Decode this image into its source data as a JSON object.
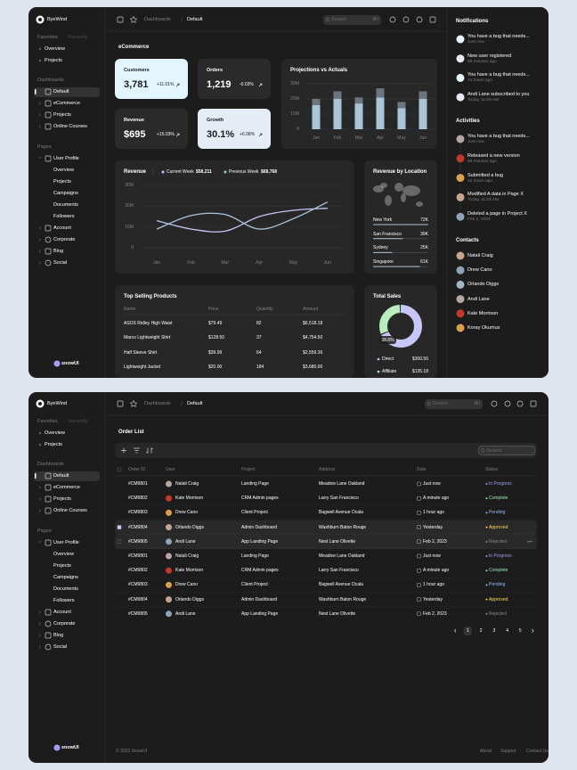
{
  "sidebar": {
    "brand": "ByeWind",
    "tabs": [
      "Favorites",
      "Recently"
    ],
    "favorites": [
      "Overview",
      "Projects"
    ],
    "dashboards_title": "Dashboards",
    "dashboards": [
      "Default",
      "eCommerce",
      "Projects",
      "Online Courses"
    ],
    "pages_title": "Pages",
    "user_profile": "User Profile",
    "user_profile_items": [
      "Overview",
      "Projects",
      "Campaigns",
      "Documents",
      "Followers"
    ],
    "pages": [
      "Account",
      "Corporate",
      "Blog",
      "Social"
    ],
    "logo": "snowUI"
  },
  "header": {
    "breadcrumb": [
      "Dashboards",
      "Default"
    ],
    "search": "Search",
    "shortcut": "⌘/"
  },
  "dashboard": {
    "section_title": "eCommerce",
    "kpis": [
      {
        "label": "Customers",
        "value": "3,781",
        "change": "+11.01%",
        "color": "#e3f5ff"
      },
      {
        "label": "Orders",
        "value": "1,219",
        "change": "-0.03%",
        "color": "#2a2a2a"
      },
      {
        "label": "Revenue",
        "value": "$695",
        "change": "+15.03%",
        "color": "#2a2a2a"
      },
      {
        "label": "Growth",
        "value": "30.1%",
        "change": "+6.08%",
        "color": "#e5ecf6"
      }
    ],
    "projections": {
      "type": "bar",
      "title": "Projections vs Actuals",
      "categories": [
        "Jan",
        "Feb",
        "Mar",
        "Apr",
        "May",
        "Jun"
      ],
      "series": [
        {
          "color": "#a8c5da",
          "values": [
            16,
            20,
            17,
            21,
            14,
            20
          ]
        },
        {
          "color": "#6b7680",
          "values": [
            4,
            5,
            4,
            6,
            4,
            5
          ]
        }
      ],
      "ylim": [
        0,
        30
      ],
      "yticks": [
        0,
        {
          "value": 10,
          "label": "10M"
        },
        {
          "value": 20,
          "label": "20M"
        },
        {
          "value": 30,
          "label": "30M"
        }
      ],
      "grid": true
    },
    "revenue": {
      "type": "line",
      "title": "Revenue",
      "categories": [
        "Jan",
        "Feb",
        "Mar",
        "Apr",
        "May",
        "Jun"
      ],
      "series": [
        {
          "name": "Current Week",
          "total": "$58,211",
          "color": "#c6c7f8",
          "values": [
            13,
            9,
            8,
            15,
            18,
            19
          ]
        },
        {
          "name": "Previous Week",
          "total": "$68,768",
          "color": "#a8c5da",
          "values": [
            9,
            15.5,
            16,
            9,
            14,
            22
          ]
        }
      ],
      "ylim": [
        0,
        30
      ],
      "yticks": [
        0,
        {
          "value": 10,
          "label": "10M"
        },
        {
          "value": 20,
          "label": "20M"
        },
        {
          "value": 30,
          "label": "30M"
        }
      ],
      "grid": true
    },
    "location": {
      "type": "bar",
      "title": "Revenue by Location",
      "categories": [
        "New York",
        "San Francisco",
        "Sydney",
        "Singapore"
      ],
      "values": [
        72,
        39,
        25,
        61
      ],
      "value_labels": [
        "72K",
        "39K",
        "25K",
        "61K"
      ],
      "color": "#a8c5da"
    },
    "products": {
      "title": "Top Selling Products",
      "columns": [
        "Name",
        "Price",
        "Quantity",
        "Amount"
      ],
      "rows": [
        [
          "ASOS Ridley High Waist",
          "$79.49",
          "82",
          "$6,518.18"
        ],
        [
          "Marco Lightweight Shirt",
          "$128.50",
          "37",
          "$4,754.50"
        ],
        [
          "Half Sleeve  Shirt",
          "$39.99",
          "64",
          "$2,559.36"
        ],
        [
          "Lightweight Jacket",
          "$20.00",
          "184",
          "$3,680.00"
        ]
      ]
    },
    "total_sales": {
      "type": "pie",
      "title": "Total Sales",
      "center_label": "38.6%",
      "categories": [
        "Direct",
        "Affiliate"
      ],
      "values": [
        300.56,
        135.18
      ],
      "value_labels": [
        "$300.56",
        "$135.18"
      ],
      "colors": [
        "#c6c7f8",
        "#baedbd"
      ]
    }
  },
  "notifications": {
    "title": "Notifications",
    "items": [
      {
        "text": "You have a bug that needs...",
        "time": "Just now"
      },
      {
        "text": "New user registered",
        "time": "59 minutes ago"
      },
      {
        "text": "You have a bug that needs...",
        "time": "12 hours ago"
      },
      {
        "text": "Andi Lane subscribed to you",
        "time": "Today, 11:59 AM"
      }
    ]
  },
  "activities": {
    "title": "Activities",
    "items": [
      {
        "text": "You have a bug that needs...",
        "time": "Just now"
      },
      {
        "text": "Released a new version",
        "time": "59 minutes ago"
      },
      {
        "text": "Submitted a bug",
        "time": "12 hours ago"
      },
      {
        "text": "Modified A data in Page X",
        "time": "Today, 11:59 AM"
      },
      {
        "text": "Deleted a page in Project X",
        "time": "Feb 2, 2023"
      }
    ]
  },
  "contacts": {
    "title": "Contacts",
    "names": [
      "Natali Craig",
      "Drew Cano",
      "Orlando Diggs",
      "Andi Lane",
      "Kate Morrison",
      "Koray Okumus"
    ]
  },
  "order_list": {
    "title": "Order List",
    "search": "Search",
    "columns": [
      "Order ID",
      "User",
      "Project",
      "Address",
      "Date",
      "Status"
    ],
    "rows": [
      [
        "#CM9801",
        "Natali Craig",
        "Landing Page",
        "Meadow Lane Oakland",
        "Just now",
        "In Progress"
      ],
      [
        "#CM9802",
        "Kate Morrison",
        "CRM Admin pages",
        "Larry San Francisco",
        "A minute ago",
        "Complete"
      ],
      [
        "#CM9803",
        "Drew Cano",
        "Client Project",
        "Bagwell Avenue Ocala",
        "1 hour ago",
        "Pending"
      ],
      [
        "#CM9804",
        "Orlando Diggs",
        "Admin Dashboard",
        "Washburn Baton Rouge",
        "Yesterday",
        "Approved"
      ],
      [
        "#CM9805",
        "Andi Lane",
        "App Landing Page",
        "Nest Lane Olivette",
        "Feb 2, 2023",
        "Rejected"
      ],
      [
        "#CM9801",
        "Natali Craig",
        "Landing Page",
        "Meadow Lane Oakland",
        "Just now",
        "In Progress"
      ],
      [
        "#CM9802",
        "Kate Morrison",
        "CRM Admin pages",
        "Larry San Francisco",
        "A minute ago",
        "Complete"
      ],
      [
        "#CM9803",
        "Drew Cano",
        "Client Project",
        "Bagwell Avenue Ocala",
        "1 hour ago",
        "Pending"
      ],
      [
        "#CM9804",
        "Orlando Diggs",
        "Admin Dashboard",
        "Washburn Baton Rouge",
        "Yesterday",
        "Approved"
      ],
      [
        "#CM9805",
        "Andi Lane",
        "App Landing Page",
        "Nest Lane Olivette",
        "Feb 2, 2023",
        "Rejected"
      ]
    ],
    "status_colors": {
      "In Progress": "#9f9ff8",
      "Complete": "#94e9b8",
      "Pending": "#92bfff",
      "Approved": "#ffdb56",
      "Rejected": "#8a8a8a"
    },
    "pagination": [
      1,
      2,
      3,
      4,
      5
    ]
  },
  "footer": {
    "copyright": "© 2023 SnowUI",
    "links": [
      "About",
      "Support",
      "Contact Us"
    ]
  }
}
